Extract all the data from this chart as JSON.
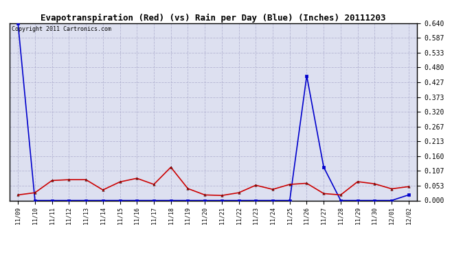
{
  "title": "Evapotranspiration (Red) (vs) Rain per Day (Blue) (Inches) 20111203",
  "copyright": "Copyright 2011 Cartronics.com",
  "x_labels": [
    "11/09",
    "11/10",
    "11/11",
    "11/12",
    "11/13",
    "11/14",
    "11/15",
    "11/16",
    "11/17",
    "11/18",
    "11/19",
    "11/20",
    "11/21",
    "11/22",
    "11/23",
    "11/24",
    "11/25",
    "11/26",
    "11/27",
    "11/28",
    "11/29",
    "11/30",
    "12/01",
    "12/02"
  ],
  "red_data": [
    0.02,
    0.028,
    0.072,
    0.075,
    0.075,
    0.038,
    0.067,
    0.08,
    0.058,
    0.12,
    0.043,
    0.02,
    0.018,
    0.028,
    0.055,
    0.04,
    0.058,
    0.062,
    0.025,
    0.02,
    0.068,
    0.06,
    0.042,
    0.05
  ],
  "blue_data": [
    0.64,
    0.0,
    0.0,
    0.0,
    0.0,
    0.0,
    0.0,
    0.0,
    0.0,
    0.0,
    0.0,
    0.0,
    0.0,
    0.0,
    0.0,
    0.0,
    0.0,
    0.45,
    0.12,
    0.0,
    0.0,
    0.0,
    0.0,
    0.02
  ],
  "y_ticks": [
    0.0,
    0.053,
    0.107,
    0.16,
    0.213,
    0.267,
    0.32,
    0.373,
    0.427,
    0.48,
    0.533,
    0.587,
    0.64
  ],
  "ylim": [
    0.0,
    0.64
  ],
  "bg_color": "#dde0f0",
  "red_color": "#cc0000",
  "blue_color": "#0000cc",
  "grid_color": "#aaaacc",
  "title_fontsize": 9,
  "copyright_fontsize": 6,
  "tick_fontsize": 7,
  "xtick_fontsize": 6
}
